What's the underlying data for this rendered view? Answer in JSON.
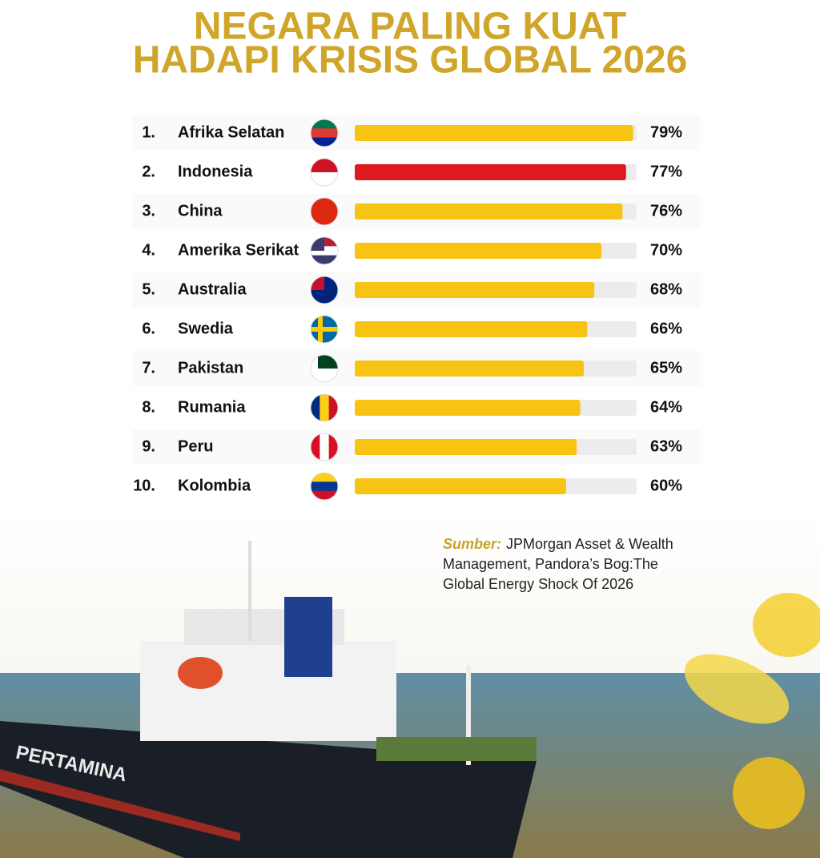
{
  "chart_data": {
    "type": "bar",
    "orientation": "horizontal",
    "title": [
      "NEGARA PALING KUAT",
      "HADAPI KRISIS GLOBAL 2026"
    ],
    "ranks": [
      "1.",
      "2.",
      "3.",
      "4.",
      "5.",
      "6.",
      "7.",
      "8.",
      "9.",
      "10."
    ],
    "categories": [
      "Afrika Selatan",
      "Indonesia",
      "China",
      "Amerika Serikat",
      "Australia",
      "Swedia",
      "Pakistan",
      "Rumania",
      "Peru",
      "Kolombia"
    ],
    "values": [
      79,
      77,
      76,
      70,
      68,
      66,
      65,
      64,
      63,
      60
    ],
    "value_labels": [
      "79%",
      "77%",
      "76%",
      "70%",
      "68%",
      "66%",
      "65%",
      "64%",
      "63%",
      "60%"
    ],
    "colors": [
      "#f7c414",
      "#dc1a1f",
      "#f7c414",
      "#f7c414",
      "#f7c414",
      "#f7c414",
      "#f7c414",
      "#f7c414",
      "#f7c414",
      "#f7c414"
    ],
    "track_color": "#ececec",
    "xlim": [
      0,
      80
    ],
    "source_label": "Sumber:",
    "source_lines": [
      "JPMorgan Asset & Wealth",
      "Management, Pandora’s Bog:The",
      "Global Energy Shock Of 2026"
    ],
    "ship_label": "PERTAMINA"
  }
}
